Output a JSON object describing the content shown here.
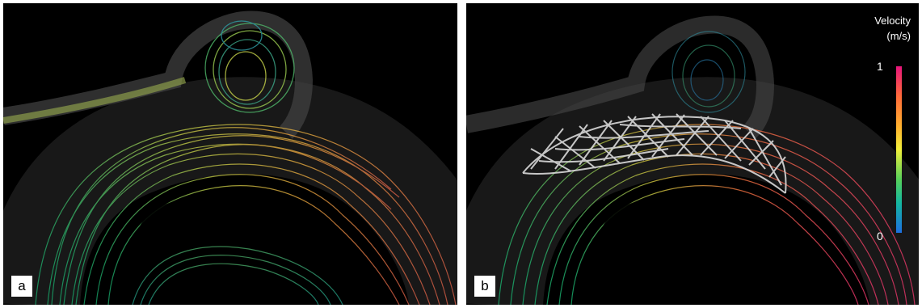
{
  "panels": [
    {
      "label": "a"
    },
    {
      "label": "b"
    }
  ],
  "legend": {
    "title_line1": "Velocity",
    "title_line2": "(m/s)",
    "max": "1",
    "min": "0"
  },
  "colors": {
    "background": "#000000",
    "vessel_wall": "#5a5a5a",
    "stent_mesh": "#d9d9d9",
    "scale": [
      "#e8157c",
      "#ff6a3a",
      "#ffb02e",
      "#f1ef3a",
      "#56d05a",
      "#14b7a0",
      "#1d6fe0"
    ]
  }
}
